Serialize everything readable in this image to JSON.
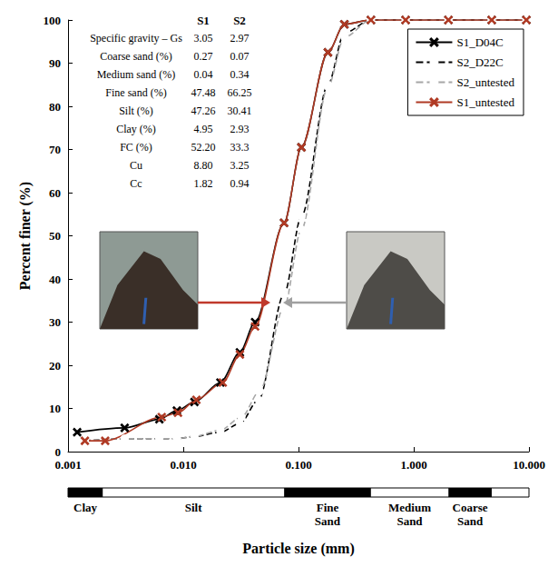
{
  "chart_data": {
    "type": "line",
    "x_label": "Particle size (mm)",
    "y_label": "Percent finer (%)",
    "log": "x",
    "grid": false,
    "legend": "upper right",
    "xlim": [
      0.001,
      10
    ],
    "xticks": [
      0.001,
      {
        "value": 0.01,
        "label": "0.010"
      },
      {
        "value": 0.1,
        "label": "0.100"
      },
      {
        "value": 1,
        "label": "1.000"
      },
      {
        "value": 10,
        "label": "10.000"
      }
    ],
    "ylim": [
      0,
      100
    ],
    "yticks": [
      0,
      10,
      20,
      30,
      40,
      50,
      60,
      70,
      80,
      90,
      100
    ],
    "series": [
      {
        "name": "S1_D04C",
        "color": "#000000",
        "marker": "x",
        "line_style": "solid",
        "x": [
          0.0012,
          0.0031,
          0.0062,
          0.0088,
          0.0125,
          0.021,
          0.031,
          0.042,
          0.075,
          0.106,
          0.18,
          0.25,
          0.425,
          0.85,
          2,
          4.75,
          9.5
        ],
        "values": [
          4.5,
          5.5,
          7.5,
          9.5,
          11.5,
          16,
          23,
          30,
          53,
          70.5,
          92.5,
          99,
          100,
          100,
          100,
          100,
          100
        ]
      },
      {
        "name": "S2_D22C",
        "color": "#000000",
        "marker": "circle",
        "line_style": "dashed",
        "x": [
          0.0014,
          0.0031,
          0.0062,
          0.0088,
          0.0125,
          0.021,
          0.031,
          0.045,
          0.075,
          0.106,
          0.18,
          0.25,
          0.425,
          0.85,
          2,
          4.75,
          9.5
        ],
        "values": [
          2.5,
          3,
          3,
          3,
          3.5,
          4.5,
          6.5,
          12,
          36.5,
          54.5,
          85,
          97,
          100,
          100,
          100,
          100,
          100
        ]
      },
      {
        "name": "S2_untested",
        "color": "#a6a6a6",
        "marker": "circle",
        "line_style": "dashed",
        "x": [
          0.0014,
          0.0031,
          0.0062,
          0.0088,
          0.0125,
          0.021,
          0.032,
          0.046,
          0.075,
          0.106,
          0.18,
          0.25,
          0.425,
          0.85,
          2,
          4.75,
          9.5
        ],
        "values": [
          2.5,
          3,
          3,
          3,
          3.5,
          5,
          8,
          14,
          33.5,
          51.5,
          84.5,
          96,
          100,
          100,
          100,
          100,
          100
        ]
      },
      {
        "name": "S1_untested",
        "color": "#b03a24",
        "marker": "x",
        "line_style": "solid",
        "x": [
          0.0014,
          0.0021,
          0.0065,
          0.009,
          0.013,
          0.022,
          0.031,
          0.042,
          0.075,
          0.106,
          0.18,
          0.25,
          0.425,
          0.85,
          2,
          4.75,
          9.5
        ],
        "values": [
          2.5,
          2.5,
          8,
          9,
          12,
          16,
          22.5,
          29,
          53,
          70.5,
          92.5,
          99,
          100,
          100,
          100,
          100,
          100
        ]
      }
    ],
    "table": {
      "columns": [
        "S1",
        "S2"
      ],
      "rows": [
        [
          "Specific gravity – Gs",
          "3.05",
          "2.97"
        ],
        [
          "Coarse sand (%)",
          "0.27",
          "0.07"
        ],
        [
          "Medium sand (%)",
          "0.04",
          "0.34"
        ],
        [
          "Fine sand (%)",
          "47.48",
          "66.25"
        ],
        [
          "Silt (%)",
          "47.26",
          "30.41"
        ],
        [
          "Clay (%)",
          "4.95",
          "2.93"
        ],
        [
          "FC (%)",
          "52.20",
          "33.3"
        ],
        [
          "Cu",
          "8.80",
          "3.25"
        ],
        [
          "Cc",
          "1.82",
          "0.94"
        ]
      ]
    },
    "soil_classes": [
      {
        "label": "Clay",
        "from": 0.001,
        "to": 0.002
      },
      {
        "label": "Silt",
        "from": 0.002,
        "to": 0.075
      },
      {
        "label": "Fine Sand",
        "from": 0.075,
        "to": 0.425
      },
      {
        "label": "Medium Sand",
        "from": 0.425,
        "to": 2
      },
      {
        "label": "Coarse Sand",
        "from": 2,
        "to": 4.75
      }
    ]
  }
}
